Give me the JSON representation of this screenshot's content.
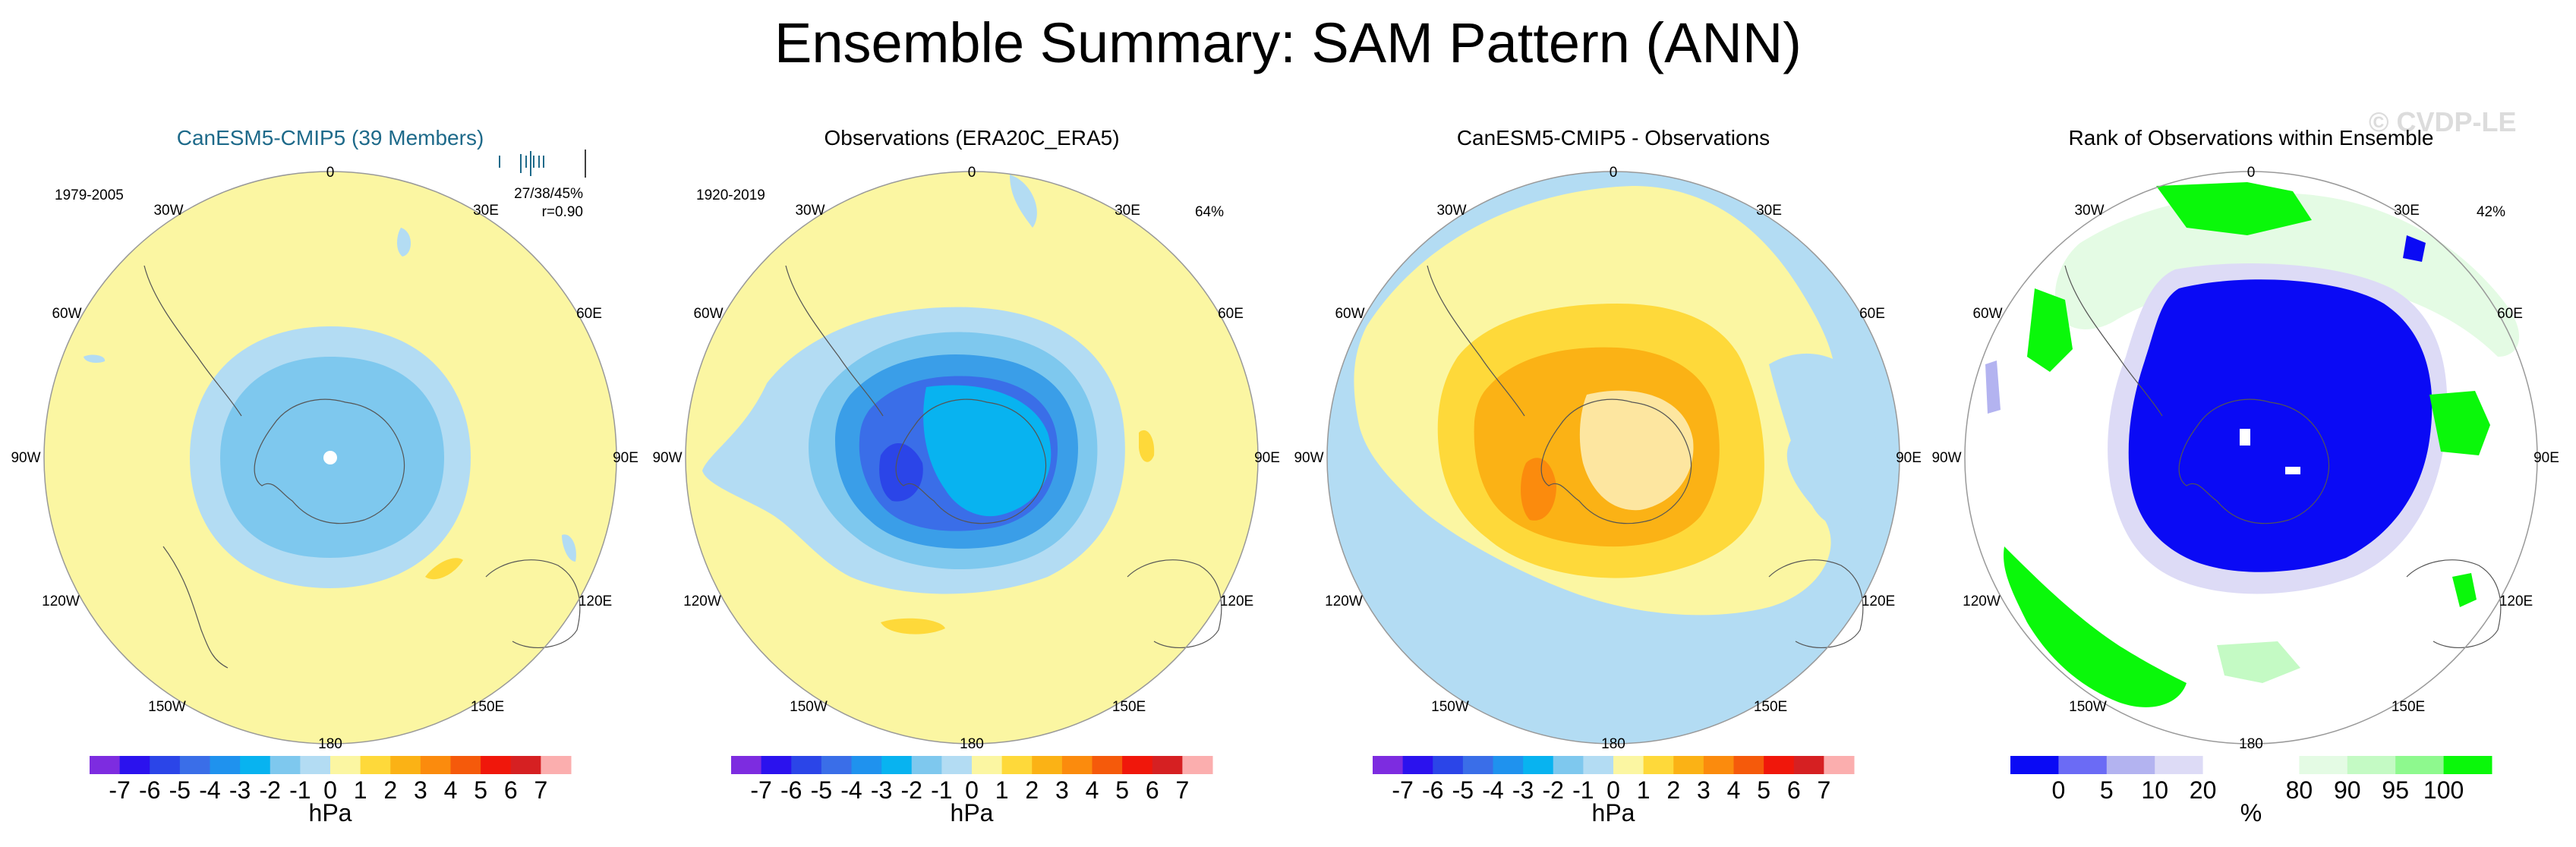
{
  "title": "Ensemble Summary: SAM Pattern (ANN)",
  "watermark": "© CVDP-LE",
  "colors": {
    "pressure_scale": [
      "#7d2ce0",
      "#2b12ee",
      "#2b45e8",
      "#3a6ee8",
      "#1f92ee",
      "#08b3f0",
      "#7ec8ee",
      "#b3dcf3",
      "#fbf6a2",
      "#fed93a",
      "#fbb215",
      "#fb8b0d",
      "#f55a0b",
      "#f0170b",
      "#d62022",
      "#fbaeae"
    ],
    "rank_scale": [
      "#0a0af5",
      "#6b6bf5",
      "#b3b3f0",
      "#dddbf6",
      "#ffffff",
      "#ffffff",
      "#e4fbe4",
      "#c4fac4",
      "#8ef98e",
      "#0af80a"
    ]
  },
  "chart_data": [
    {
      "type": "heatmap",
      "projection": "south-polar-stereographic",
      "title": "CanESM5-CMIP5 (39 Members)",
      "period": "1979-2005",
      "stats_line1": "27/38/45%",
      "stats_line2": "r=0.90",
      "longitude_labels": [
        "0",
        "30E",
        "60E",
        "90E",
        "120E",
        "150E",
        "180",
        "150W",
        "120W",
        "90W",
        "60W",
        "30W"
      ],
      "units": "hPa",
      "colorbar_ticks": [
        "-7",
        "-6",
        "-5",
        "-4",
        "-3",
        "-2",
        "-1",
        "0",
        "1",
        "2",
        "3",
        "4",
        "5",
        "6",
        "7"
      ],
      "field_levels_hpa": [
        0.5,
        -0.5,
        -1.5
      ]
    },
    {
      "type": "heatmap",
      "projection": "south-polar-stereographic",
      "title": "Observations (ERA20C_ERA5)",
      "period": "1920-2019",
      "percent_label": "64%",
      "longitude_labels": [
        "0",
        "30E",
        "60E",
        "90E",
        "120E",
        "150E",
        "180",
        "150W",
        "120W",
        "90W",
        "60W",
        "30W"
      ],
      "units": "hPa",
      "colorbar_ticks": [
        "-7",
        "-6",
        "-5",
        "-4",
        "-3",
        "-2",
        "-1",
        "0",
        "1",
        "2",
        "3",
        "4",
        "5",
        "6",
        "7"
      ],
      "field_levels_hpa": [
        0.5,
        -0.5,
        -1.5,
        -2.5,
        -3.5,
        -4.5
      ]
    },
    {
      "type": "heatmap",
      "projection": "south-polar-stereographic",
      "title": "CanESM5-CMIP5 - Observations",
      "longitude_labels": [
        "0",
        "30E",
        "60E",
        "90E",
        "120E",
        "150E",
        "180",
        "150W",
        "120W",
        "90W",
        "60W",
        "30W"
      ],
      "units": "hPa",
      "colorbar_ticks": [
        "-7",
        "-6",
        "-5",
        "-4",
        "-3",
        "-2",
        "-1",
        "0",
        "1",
        "2",
        "3",
        "4",
        "5",
        "6",
        "7"
      ],
      "field_levels_hpa": [
        -0.5,
        0.5,
        1.5,
        2.5,
        3.5
      ]
    },
    {
      "type": "heatmap",
      "projection": "south-polar-stereographic",
      "title": "Rank of Observations within Ensemble",
      "percent_label": "42%",
      "longitude_labels": [
        "0",
        "30E",
        "60E",
        "90E",
        "120E",
        "150E",
        "180",
        "150W",
        "120W",
        "90W",
        "60W",
        "30W"
      ],
      "units": "%",
      "colorbar_ticks": [
        "0",
        "5",
        "10",
        "20",
        "80",
        "90",
        "95",
        "100"
      ],
      "rank_bounds_pct": [
        0,
        5,
        10,
        20,
        80,
        90,
        95,
        100
      ]
    }
  ]
}
